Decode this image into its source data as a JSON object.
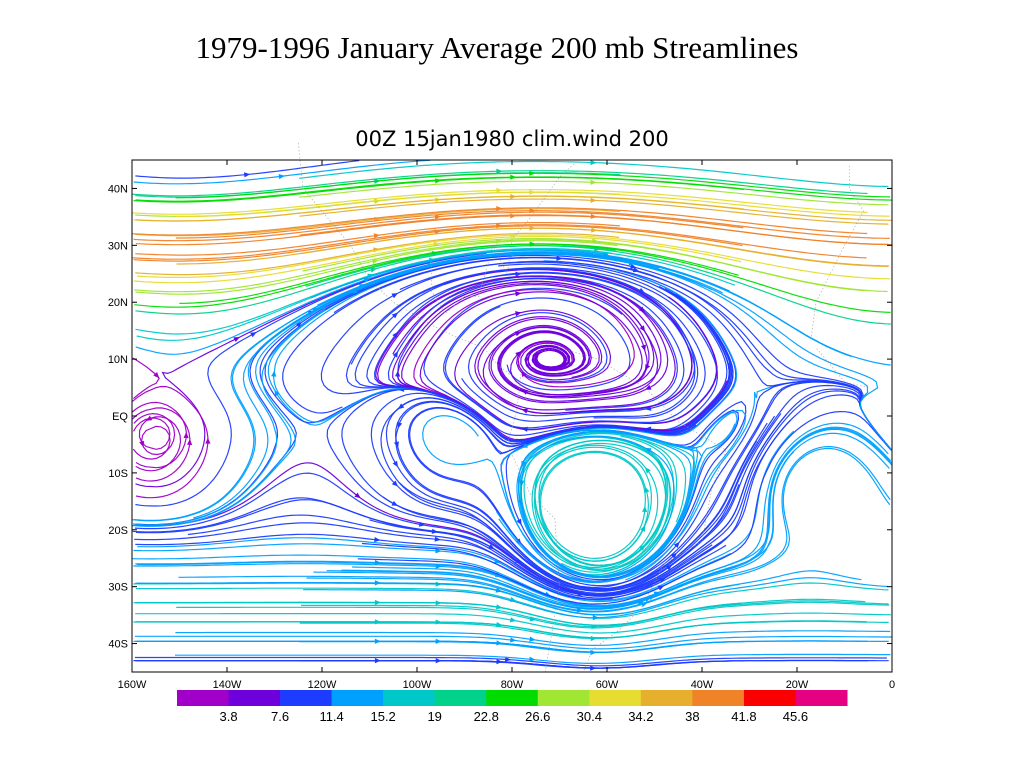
{
  "slide": {
    "title": "1979-1996 January Average 200 mb Streamlines"
  },
  "chart_data": {
    "type": "streamline",
    "title": "00Z 15jan1980 clim.wind 200",
    "x_ticks": [
      "160W",
      "140W",
      "120W",
      "100W",
      "80W",
      "60W",
      "40W",
      "20W",
      "0"
    ],
    "y_ticks": [
      "40N",
      "30N",
      "20N",
      "10N",
      "EQ",
      "10S",
      "20S",
      "30S",
      "40S"
    ],
    "xlim": [
      -160,
      0
    ],
    "ylim": [
      -45,
      45
    ],
    "x_tick_values": [
      -160,
      -140,
      -120,
      -100,
      -80,
      -60,
      -40,
      -20,
      0
    ],
    "y_tick_values": [
      40,
      30,
      20,
      10,
      0,
      -10,
      -20,
      -30,
      -40
    ],
    "colorbar": {
      "colors": [
        "#a000c8",
        "#6e00dc",
        "#1e3cff",
        "#00a0ff",
        "#00c8c8",
        "#00d28c",
        "#00dc00",
        "#a0e632",
        "#e6dc32",
        "#e6af2d",
        "#f08228",
        "#fa0000",
        "#e60082"
      ],
      "labels": [
        "3.8",
        "7.6",
        "11.4",
        "15.2",
        "19",
        "22.8",
        "26.6",
        "30.4",
        "34.2",
        "38",
        "41.8",
        "45.6"
      ]
    },
    "features": {
      "anticyclone_center": [
        -62,
        -18
      ],
      "jet_core_lat": 32,
      "background": "coastlines dotted grey"
    }
  }
}
